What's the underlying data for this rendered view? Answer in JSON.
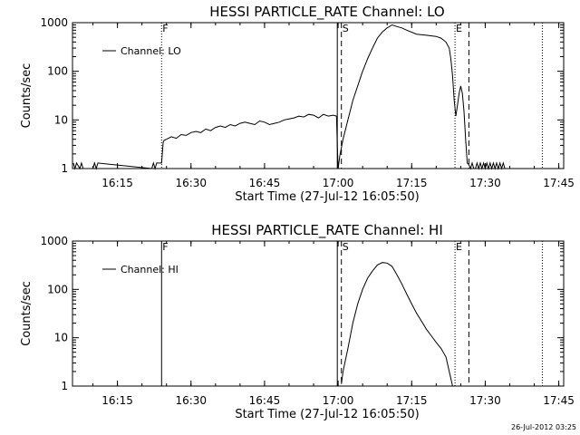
{
  "footer": {
    "timestamp": "26-Jul-2012 03:25"
  },
  "chart_data": [
    {
      "type": "line",
      "title": "HESSI PARTICLE_RATE Channel: LO",
      "xlabel": "Start Time (27-Jul-12 16:05:50)",
      "ylabel": "Counts/sec",
      "yscale": "log",
      "ylim": [
        1,
        1000
      ],
      "xlim": [
        "16:05:50",
        "17:46:00"
      ],
      "x_ticks": [
        "16:15",
        "16:30",
        "16:45",
        "17:00",
        "17:15",
        "17:30",
        "17:45"
      ],
      "y_ticks": [
        "1",
        "10",
        "100",
        "1000"
      ],
      "legend": {
        "position": "top-left",
        "label": "Channel: LO"
      },
      "markers": [
        {
          "label": "F",
          "time": "16:24:00",
          "style": "dotted"
        },
        {
          "label": "",
          "time": "16:59:50",
          "style": "solid"
        },
        {
          "label": "S",
          "time": "17:00:40",
          "style": "dashed"
        },
        {
          "label": "E",
          "time": "17:23:50",
          "style": "dotted"
        },
        {
          "label": "",
          "time": "17:26:40",
          "style": "dashed"
        },
        {
          "label": "",
          "time": "17:41:40",
          "style": "dotted"
        }
      ],
      "series": [
        {
          "name": "Channel: LO",
          "x": [
            "16:06:00",
            "16:06:20",
            "16:06:40",
            "16:07:20",
            "16:07:40",
            "16:08:00",
            "16:10:00",
            "16:10:20",
            "16:10:40",
            "16:11:00",
            "16:22:00",
            "16:22:20",
            "16:22:40",
            "16:23:00",
            "16:23:20",
            "16:24:00",
            "16:24:20",
            "16:24:30",
            "16:25:00",
            "16:26:00",
            "16:27:00",
            "16:28:00",
            "16:29:00",
            "16:30:00",
            "16:31:00",
            "16:32:00",
            "16:33:00",
            "16:34:00",
            "16:35:00",
            "16:36:00",
            "16:37:00",
            "16:38:00",
            "16:39:00",
            "16:40:00",
            "16:41:00",
            "16:42:00",
            "16:43:00",
            "16:44:00",
            "16:45:00",
            "16:46:00",
            "16:47:00",
            "16:48:00",
            "16:49:00",
            "16:50:00",
            "16:51:00",
            "16:52:00",
            "16:53:00",
            "16:54:00",
            "16:55:00",
            "16:56:00",
            "16:57:00",
            "16:58:00",
            "16:59:00",
            "16:59:40",
            "16:59:50",
            "17:00:00",
            "17:00:20",
            "17:01:00",
            "17:02:00",
            "17:03:00",
            "17:04:00",
            "17:05:00",
            "17:06:00",
            "17:07:00",
            "17:08:00",
            "17:09:00",
            "17:10:00",
            "17:11:00",
            "17:12:00",
            "17:13:00",
            "17:14:00",
            "17:16:00",
            "17:18:00",
            "17:20:00",
            "17:21:00",
            "17:22:00",
            "17:22:40",
            "17:23:00",
            "17:23:20",
            "17:23:40",
            "17:24:00",
            "17:24:20",
            "17:24:40",
            "17:25:00",
            "17:25:20",
            "17:25:40",
            "17:26:00",
            "17:26:20",
            "17:26:40",
            "17:27:00",
            "17:27:20",
            "17:27:40",
            "17:28:00",
            "17:28:20",
            "17:28:40",
            "17:29:00",
            "17:29:20",
            "17:29:40",
            "17:30:00",
            "17:30:20",
            "17:30:40",
            "17:31:00",
            "17:31:20",
            "17:31:40",
            "17:32:00",
            "17:32:20",
            "17:32:40",
            "17:33:00",
            "17:33:20",
            "17:33:40",
            "17:34:00"
          ],
          "y": [
            1.3,
            1,
            1.3,
            1,
            1.3,
            1,
            1,
            1.3,
            1,
            1.3,
            1,
            1.3,
            1,
            1.3,
            1.3,
            1.3,
            3.5,
            3.8,
            4,
            4.5,
            4.2,
            5,
            4.8,
            5.5,
            5.8,
            5.5,
            6.5,
            6,
            7,
            7.5,
            7,
            8,
            7.5,
            8.5,
            9,
            8.5,
            8,
            9.5,
            9,
            8,
            8.5,
            9,
            10,
            10.5,
            11,
            12,
            11.5,
            13,
            12.5,
            11,
            13,
            12,
            12.5,
            12,
            3,
            1,
            1.8,
            4,
            10,
            25,
            50,
            100,
            180,
            300,
            480,
            640,
            780,
            900,
            830,
            780,
            700,
            580,
            550,
            520,
            480,
            400,
            300,
            180,
            80,
            25,
            12,
            20,
            35,
            50,
            35,
            15,
            4,
            1.3,
            1.2,
            1,
            1.3,
            1,
            1,
            1.3,
            1,
            1.3,
            1,
            1.3,
            1,
            1.3,
            1,
            1.3,
            1,
            1.3,
            1,
            1.3,
            1,
            1.3,
            1,
            1.3,
            1
          ]
        }
      ]
    },
    {
      "type": "line",
      "title": "HESSI PARTICLE_RATE Channel: HI",
      "xlabel": "Start Time (27-Jul-12 16:05:50)",
      "ylabel": "Counts/sec",
      "yscale": "log",
      "ylim": [
        1,
        1000
      ],
      "xlim": [
        "16:05:50",
        "17:46:00"
      ],
      "x_ticks": [
        "16:15",
        "16:30",
        "16:45",
        "17:00",
        "17:15",
        "17:30",
        "17:45"
      ],
      "y_ticks": [
        "1",
        "10",
        "100",
        "1000"
      ],
      "legend": {
        "position": "top-left",
        "label": "Channel: HI"
      },
      "markers": [
        {
          "label": "F",
          "time": "16:24:00",
          "style": "solid"
        },
        {
          "label": "",
          "time": "16:59:50",
          "style": "solid"
        },
        {
          "label": "S",
          "time": "17:00:40",
          "style": "dashed"
        },
        {
          "label": "E",
          "time": "17:23:50",
          "style": "dotted"
        },
        {
          "label": "",
          "time": "17:26:40",
          "style": "dashed"
        },
        {
          "label": "",
          "time": "17:41:40",
          "style": "dotted"
        }
      ],
      "series": [
        {
          "name": "Channel: HI",
          "x": [
            "17:00:40",
            "17:01:00",
            "17:02:00",
            "17:03:00",
            "17:04:00",
            "17:05:00",
            "17:06:00",
            "17:07:00",
            "17:08:00",
            "17:09:00",
            "17:10:00",
            "17:11:00",
            "17:12:00",
            "17:13:00",
            "17:14:00",
            "17:15:00",
            "17:16:00",
            "17:17:00",
            "17:18:00",
            "17:19:00",
            "17:20:00",
            "17:21:00",
            "17:22:00",
            "17:22:40",
            "17:23:20"
          ],
          "y": [
            1.1,
            2,
            6,
            20,
            50,
            100,
            170,
            240,
            320,
            360,
            350,
            300,
            200,
            130,
            80,
            50,
            32,
            22,
            15,
            11,
            8,
            6,
            4,
            2,
            1
          ]
        }
      ]
    }
  ]
}
